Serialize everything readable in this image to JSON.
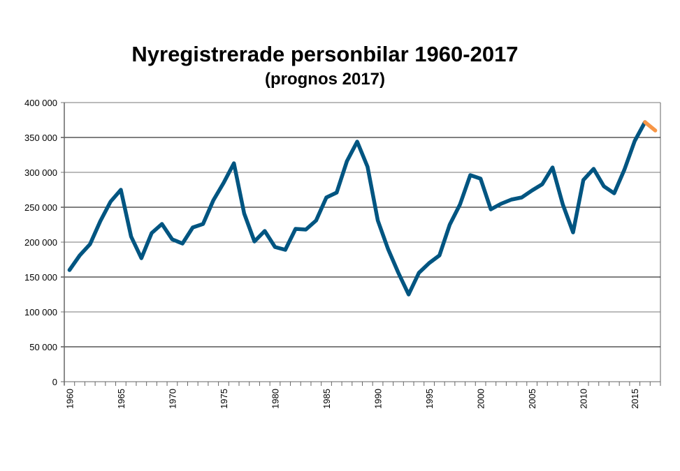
{
  "chart_data": {
    "type": "line",
    "title": "Nyregistrerade personbilar 1960-2017",
    "subtitle": "(prognos 2017)",
    "xlabel": "",
    "ylabel": "",
    "ylim": [
      0,
      400000
    ],
    "yticks": [
      "0",
      "50 000",
      "100 000",
      "150 000",
      "200 000",
      "250 000",
      "300 000",
      "350 000",
      "400 000"
    ],
    "xticks": [
      "1960",
      "1965",
      "1970",
      "1975",
      "1980",
      "1985",
      "1990",
      "1995",
      "2000",
      "2005",
      "2010",
      "2015"
    ],
    "grid": true,
    "legend": "none",
    "x": [
      1960,
      1961,
      1962,
      1963,
      1964,
      1965,
      1966,
      1967,
      1968,
      1969,
      1970,
      1971,
      1972,
      1973,
      1974,
      1975,
      1976,
      1977,
      1978,
      1979,
      1980,
      1981,
      1982,
      1983,
      1984,
      1985,
      1986,
      1987,
      1988,
      1989,
      1990,
      1991,
      1992,
      1993,
      1994,
      1995,
      1996,
      1997,
      1998,
      1999,
      2000,
      2001,
      2002,
      2003,
      2004,
      2005,
      2006,
      2007,
      2008,
      2009,
      2010,
      2011,
      2012,
      2013,
      2014,
      2015,
      2016,
      2017
    ],
    "series": [
      {
        "color": "#005581",
        "values": [
          160000,
          181000,
          197000,
          230000,
          258000,
          275000,
          208000,
          177000,
          213000,
          226000,
          204000,
          198000,
          221000,
          226000,
          260000,
          285000,
          313000,
          241000,
          201000,
          216000,
          193000,
          189000,
          219000,
          218000,
          231000,
          264000,
          271000,
          316000,
          344000,
          308000,
          231000,
          190000,
          156000,
          125000,
          156000,
          170000,
          181000,
          225000,
          254000,
          296000,
          291000,
          247000,
          255000,
          261000,
          264000,
          274000,
          283000,
          307000,
          254000,
          214000,
          289000,
          305000,
          280000,
          270000,
          304000,
          345000,
          372000,
          null
        ]
      },
      {
        "color": "#F79646",
        "values": [
          null,
          null,
          null,
          null,
          null,
          null,
          null,
          null,
          null,
          null,
          null,
          null,
          null,
          null,
          null,
          null,
          null,
          null,
          null,
          null,
          null,
          null,
          null,
          null,
          null,
          null,
          null,
          null,
          null,
          null,
          null,
          null,
          null,
          null,
          null,
          null,
          null,
          null,
          null,
          null,
          null,
          null,
          null,
          null,
          null,
          null,
          null,
          null,
          null,
          null,
          null,
          null,
          null,
          null,
          null,
          null,
          372000,
          360000
        ]
      }
    ]
  }
}
